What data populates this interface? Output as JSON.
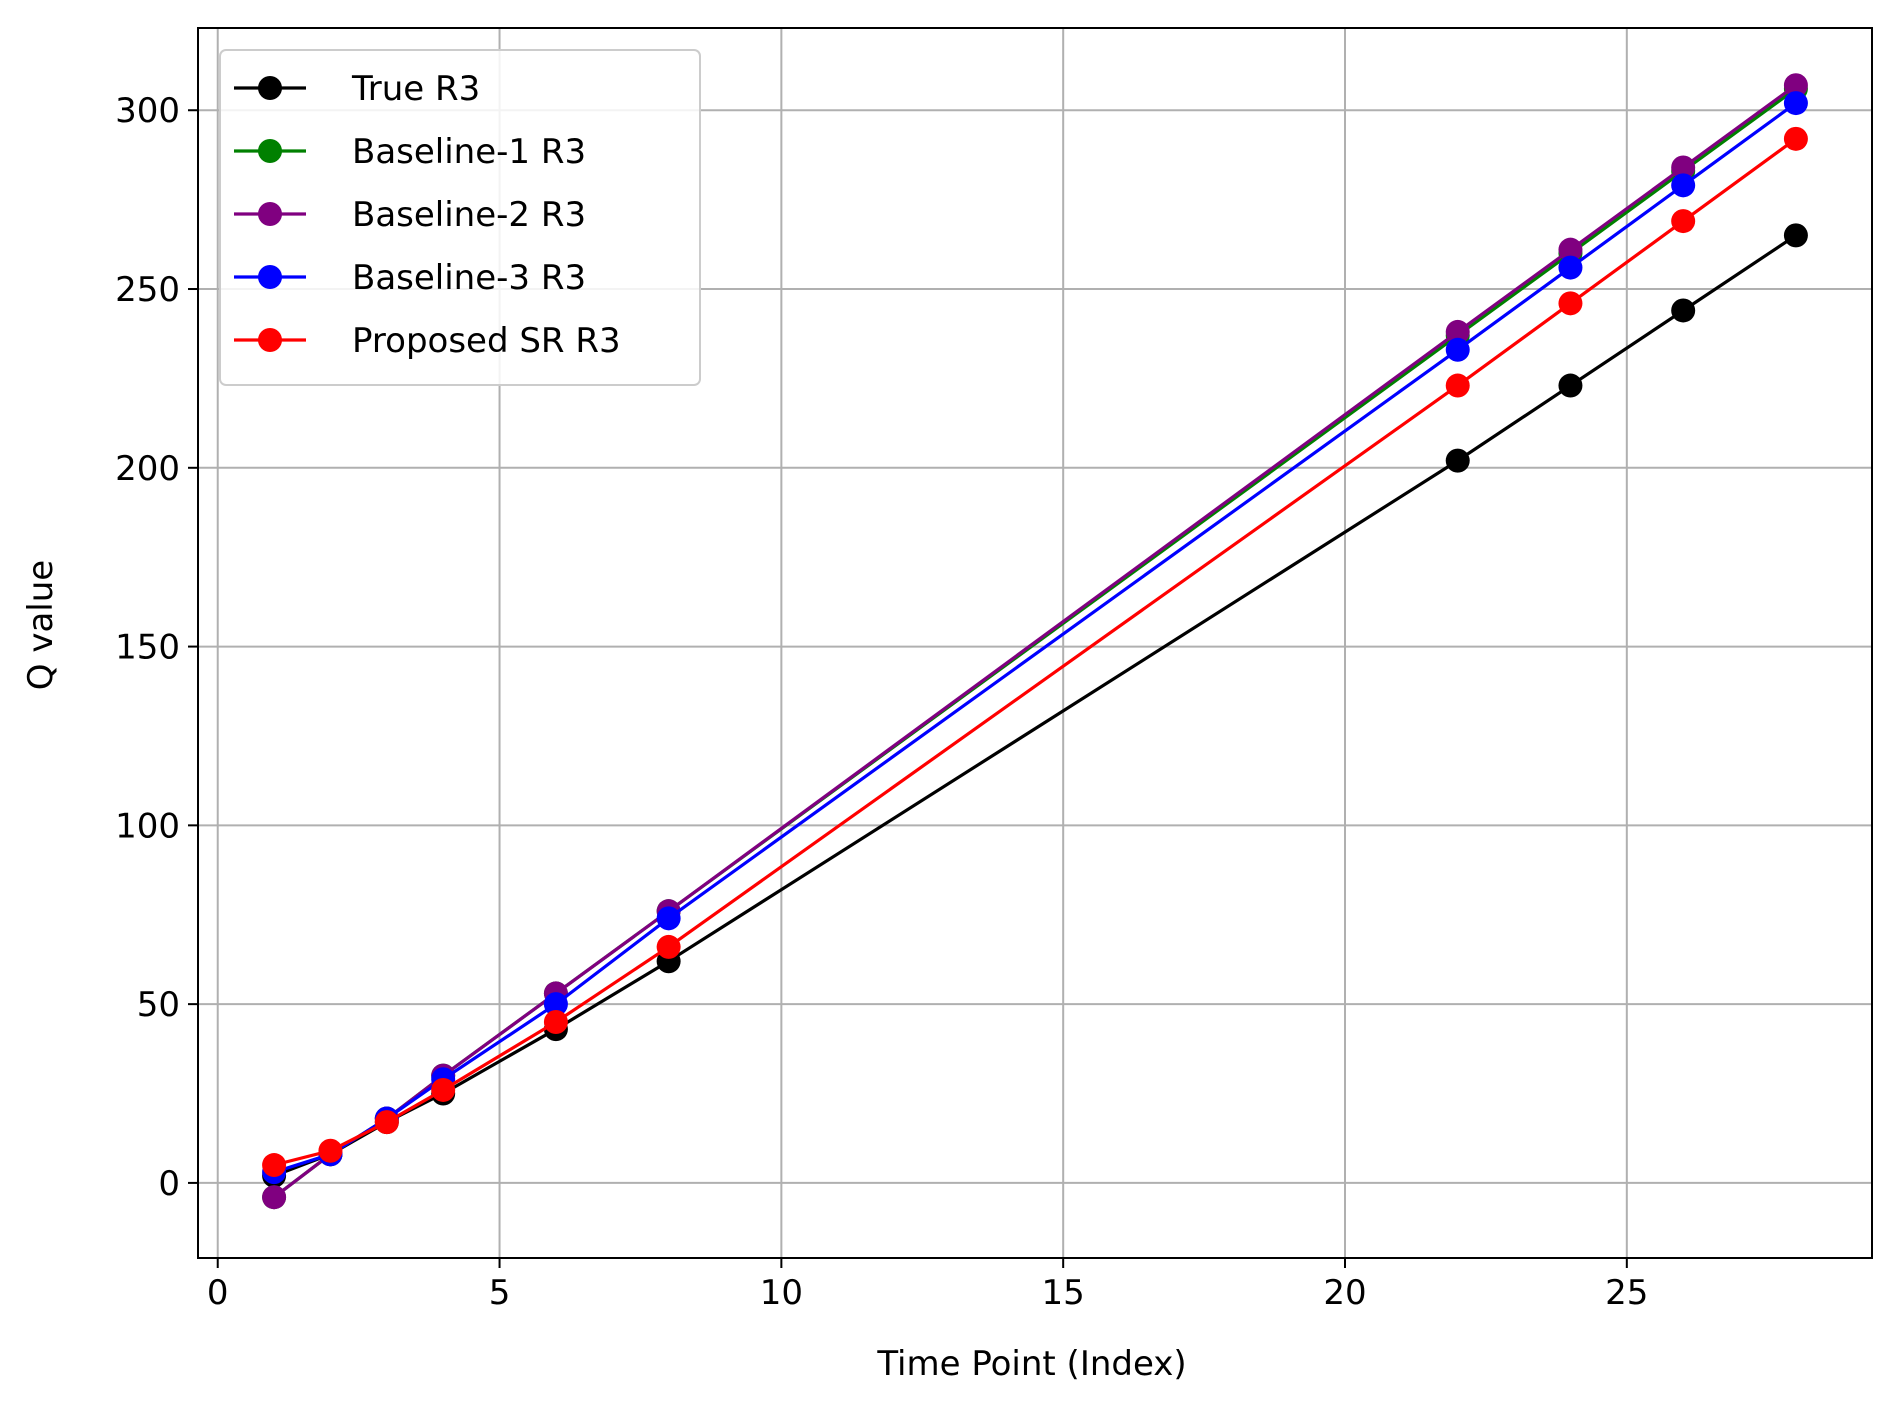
{
  "chart_data": {
    "type": "line",
    "title": "",
    "xlabel": "Time Point (Index)",
    "ylabel": "Q value",
    "xlim": [
      -0.35,
      29.35
    ],
    "ylim": [
      -21,
      323
    ],
    "xticks": [
      0,
      5,
      10,
      15,
      20,
      25
    ],
    "yticks": [
      0,
      50,
      100,
      150,
      200,
      250,
      300
    ],
    "grid": true,
    "legend_position": "top-left",
    "x": [
      1,
      2,
      3,
      4,
      6,
      8,
      22,
      24,
      26,
      28
    ],
    "series": [
      {
        "name": "True R3",
        "color": "#000000",
        "values": [
          2,
          8,
          17,
          25,
          43,
          62,
          202,
          223,
          244,
          265
        ]
      },
      {
        "name": "Baseline-1 R3",
        "color": "#008000",
        "values": [
          -4,
          8,
          18,
          30,
          53,
          76,
          237,
          260,
          283,
          306
        ]
      },
      {
        "name": "Baseline-2 R3",
        "color": "#800080",
        "values": [
          -4,
          8,
          18,
          30,
          53,
          76,
          238,
          261,
          284,
          307
        ]
      },
      {
        "name": "Baseline-3 R3",
        "color": "#0000ff",
        "values": [
          3,
          8,
          18,
          29,
          50,
          74,
          233,
          256,
          279,
          302
        ]
      },
      {
        "name": "Proposed SR R3",
        "color": "#ff0000",
        "values": [
          5,
          9,
          17,
          26,
          45,
          66,
          223,
          246,
          269,
          292
        ]
      }
    ]
  }
}
